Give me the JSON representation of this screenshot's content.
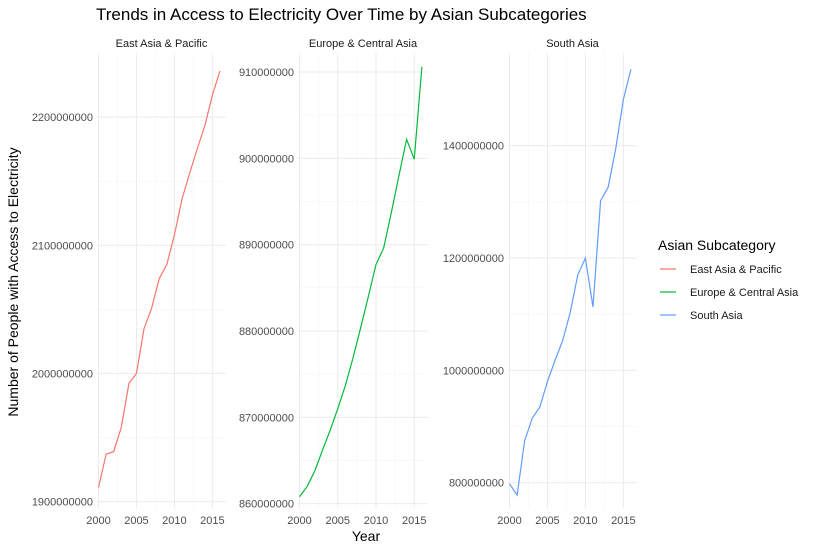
{
  "chart_data": {
    "type": "line",
    "title": "Trends in Access to Electricity Over Time by Asian Subcategories",
    "xlabel": "Year",
    "ylabel": "Number of People with Access to Electricity",
    "legend": {
      "title": "Asian Subcategory",
      "placement": "right",
      "entries": [
        "East Asia & Pacific",
        "Europe & Central Asia",
        "South Asia"
      ]
    },
    "grid": true,
    "x_ticks": [
      2000,
      2005,
      2010,
      2015
    ],
    "xlim": [
      1999.8,
      2016.8
    ],
    "panels": [
      {
        "strip": "East Asia & Pacific",
        "color": "#F8766D",
        "ylim": [
          1895000000,
          2250000000
        ],
        "y_ticks": [
          1900000000,
          2000000000,
          2100000000,
          2200000000
        ],
        "y_tick_labels": [
          "1900000000",
          "2000000000",
          "2100000000",
          "2200000000"
        ],
        "x": [
          2000,
          2001,
          2002,
          2003,
          2004,
          2005,
          2006,
          2007,
          2008,
          2009,
          2010,
          2011,
          2012,
          2013,
          2014,
          2015,
          2016
        ],
        "values": [
          1911000000,
          1937000000,
          1939000000,
          1958000000,
          1992000000,
          2000000000,
          2035000000,
          2051000000,
          2074000000,
          2085000000,
          2108000000,
          2136000000,
          2156000000,
          2175000000,
          2193000000,
          2217000000,
          2236000000
        ]
      },
      {
        "strip": "Europe & Central Asia",
        "color": "#00BA38",
        "ylim": [
          859500000,
          912200000
        ],
        "y_ticks": [
          860000000,
          870000000,
          880000000,
          890000000,
          900000000,
          910000000
        ],
        "y_tick_labels": [
          "860000000",
          "870000000",
          "880000000",
          "890000000",
          "900000000",
          "910000000"
        ],
        "x": [
          2000,
          2001,
          2002,
          2003,
          2004,
          2005,
          2006,
          2007,
          2008,
          2009,
          2010,
          2011,
          2012,
          2013,
          2014,
          2015,
          2016
        ],
        "values": [
          860800000,
          862000000,
          863800000,
          866200000,
          868500000,
          871000000,
          873700000,
          876900000,
          880400000,
          884000000,
          887700000,
          889600000,
          893700000,
          898000000,
          902200000,
          899900000,
          910600000
        ]
      },
      {
        "strip": "South Asia",
        "color": "#619CFF",
        "ylim": [
          755000000,
          1565000000
        ],
        "y_ticks": [
          800000000,
          1000000000,
          1200000000,
          1400000000
        ],
        "y_tick_labels": [
          "800000000",
          "1000000000",
          "1200000000",
          "1400000000"
        ],
        "x": [
          2000,
          2001,
          2002,
          2003,
          2004,
          2005,
          2006,
          2007,
          2008,
          2009,
          2010,
          2011,
          2012,
          2013,
          2014,
          2015,
          2016
        ],
        "values": [
          798000000,
          778000000,
          875000000,
          915000000,
          935000000,
          980000000,
          1018000000,
          1053000000,
          1103000000,
          1170000000,
          1200000000,
          1113000000,
          1302000000,
          1326000000,
          1395000000,
          1482000000,
          1536000000
        ]
      }
    ]
  }
}
